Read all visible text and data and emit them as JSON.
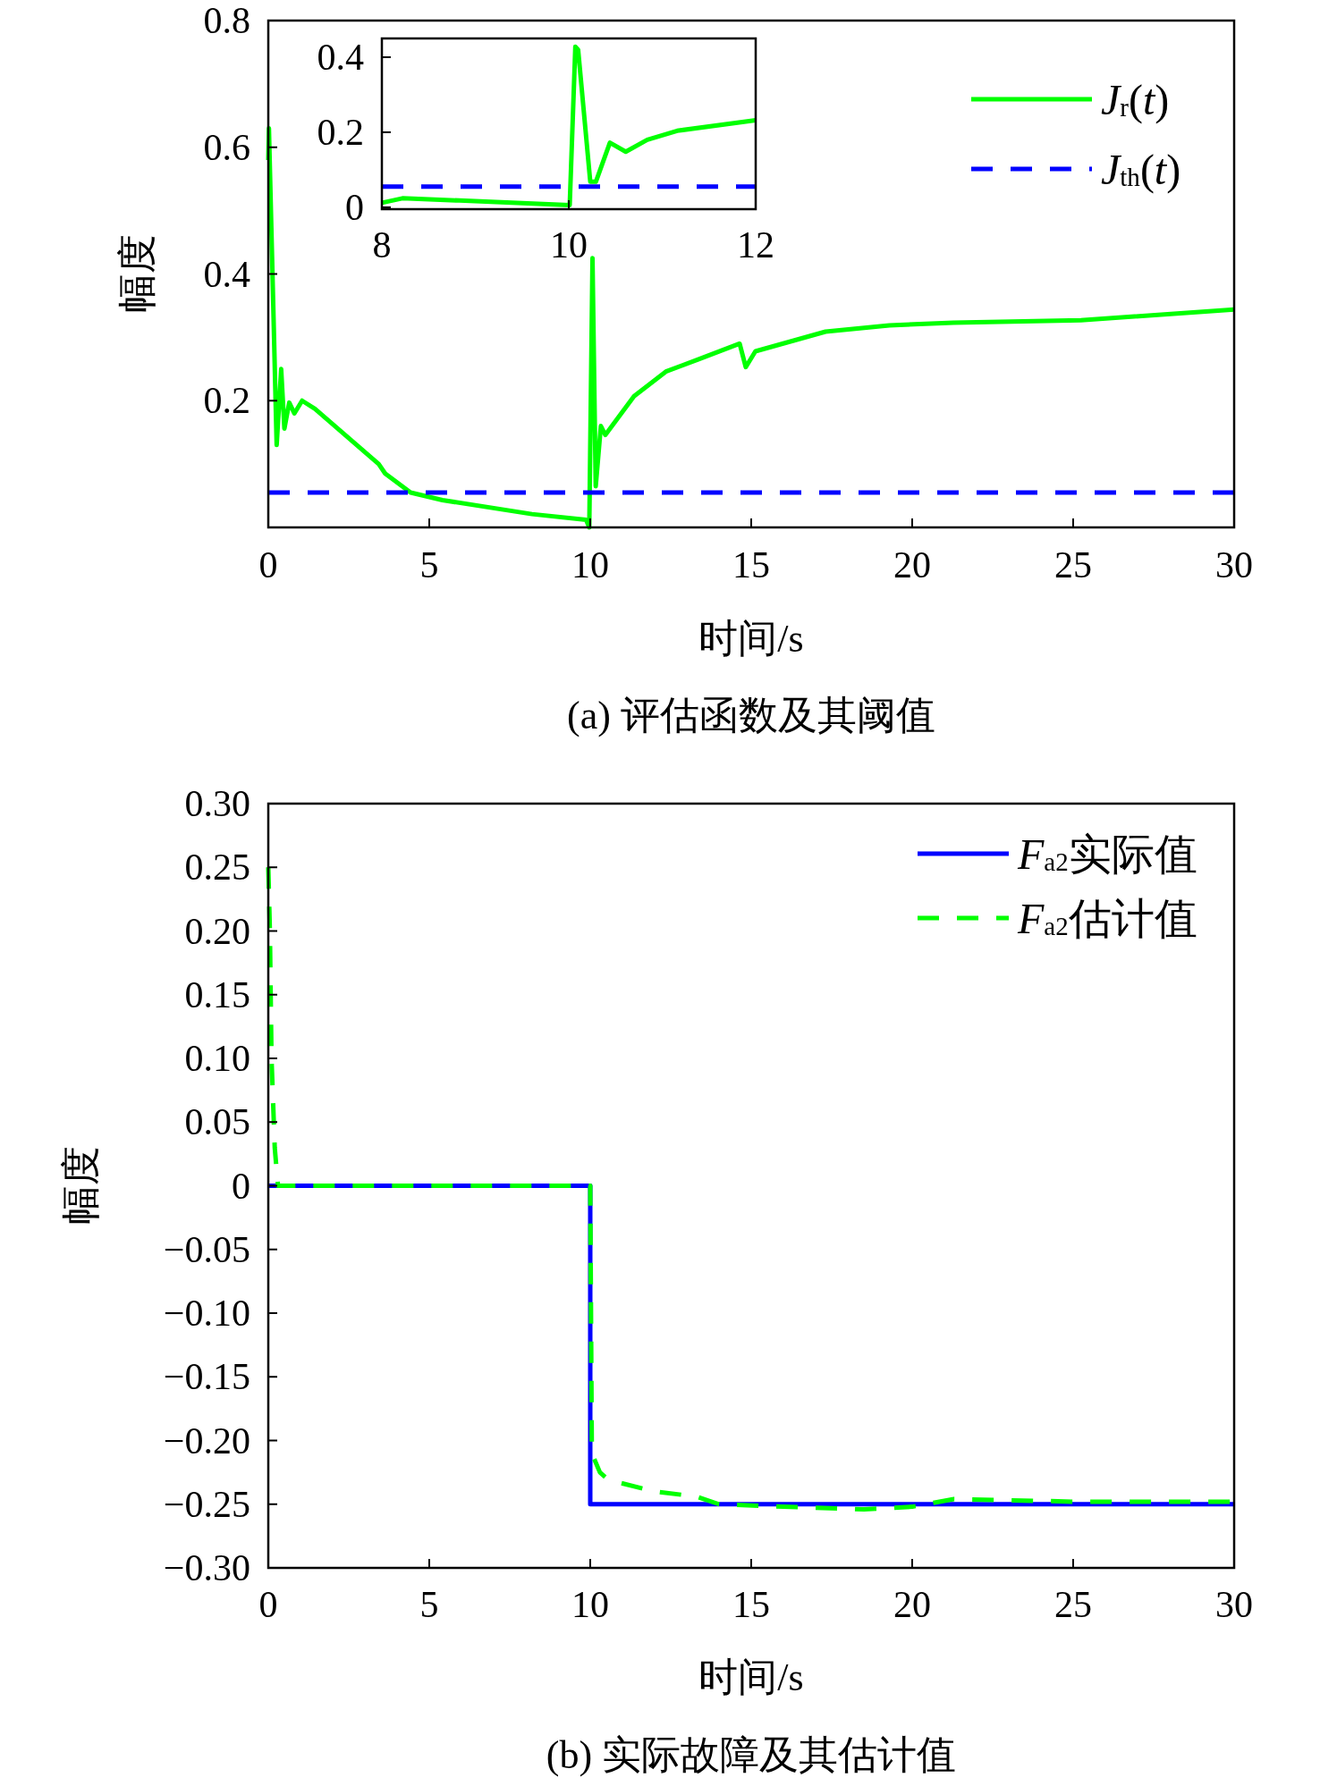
{
  "chart_data": [
    {
      "type": "line",
      "title": "(a) 评估函数及其阈值",
      "xlabel": "时间/s",
      "ylabel": "幅度",
      "xlim": [
        0,
        30
      ],
      "ylim": [
        0,
        0.8
      ],
      "xticks": [
        0,
        5,
        10,
        15,
        20,
        25,
        30
      ],
      "yticks": [
        0.2,
        0.4,
        0.6,
        0.8
      ],
      "legend": "top right",
      "series": [
        {
          "name": "*J*$_{r}$(*t*)",
          "color": "#00ff00",
          "line_style": "solid",
          "x": [
            0,
            0.02,
            0.26,
            0.4,
            0.5,
            0.65,
            0.81,
            1.05,
            1.45,
            3.43,
            3.63,
            4.42,
            5.41,
            8.19,
            9.87,
            9.97,
            10.07,
            10.17,
            10.33,
            10.47,
            11.36,
            12.35,
            13.35,
            14.64,
            14.83,
            15.13,
            17.31,
            19.29,
            21.28,
            25.24,
            30
          ],
          "values": [
            0.58,
            0.63,
            0.13,
            0.25,
            0.156,
            0.197,
            0.18,
            0.2,
            0.187,
            0.1,
            0.085,
            0.055,
            0.043,
            0.021,
            0.012,
            0.0,
            0.425,
            0.065,
            0.16,
            0.146,
            0.207,
            0.246,
            0.265,
            0.29,
            0.253,
            0.278,
            0.309,
            0.319,
            0.323,
            0.327,
            0.344
          ]
        },
        {
          "name": "*J*$_{th}$(*t*)",
          "color": "#0000ff",
          "line_style": "dashed",
          "x": [
            0,
            30
          ],
          "values": [
            0.055,
            0.055
          ]
        }
      ]
    },
    {
      "type": "line",
      "xlim": [
        8,
        12
      ],
      "ylim": [
        -0.005,
        0.45
      ],
      "xticks": [
        8,
        10,
        12
      ],
      "yticks": [
        0,
        0.2,
        0.4
      ],
      "series": [
        {
          "color": "#00ff00",
          "line_style": "solid",
          "x": [
            8,
            8.22,
            8.83,
            10.01,
            10.07,
            10.1,
            10.23,
            10.29,
            10.44,
            10.61,
            10.84,
            11.16,
            12
          ],
          "values": [
            0.012,
            0.024,
            0.018,
            0.006,
            0.428,
            0.42,
            0.068,
            0.068,
            0.172,
            0.148,
            0.18,
            0.204,
            0.232
          ]
        },
        {
          "color": "#0000ff",
          "line_style": "dashed",
          "x": [
            8,
            12
          ],
          "values": [
            0.055,
            0.055
          ]
        }
      ]
    },
    {
      "type": "line",
      "title": "(b) 实际故障及其估计值",
      "xlabel": "时间/s",
      "ylabel": "幅度",
      "xlim": [
        0,
        30
      ],
      "ylim": [
        -0.3,
        0.3
      ],
      "xticks": [
        0,
        5,
        10,
        15,
        20,
        25,
        30
      ],
      "yticks": [
        {
          "value": 0.3,
          "label": "0.30"
        },
        {
          "value": 0.25,
          "label": "0.25"
        },
        {
          "value": 0.2,
          "label": "0.20"
        },
        {
          "value": 0.15,
          "label": "0.15"
        },
        {
          "value": 0.1,
          "label": "0.10"
        },
        {
          "value": 0.05,
          "label": "0.05"
        },
        {
          "value": 0,
          "label": "0"
        },
        {
          "value": -0.05,
          "label": "−0.05"
        },
        {
          "value": -0.1,
          "label": "−0.10"
        },
        {
          "value": -0.15,
          "label": "−0.15"
        },
        {
          "value": -0.2,
          "label": "−0.20"
        },
        {
          "value": -0.25,
          "label": "−0.25"
        },
        {
          "value": -0.3,
          "label": "−0.30"
        }
      ],
      "legend": "top right",
      "series": [
        {
          "name": "*F*$_{a2}$实际值",
          "color": "#0000ff",
          "line_style": "solid",
          "x": [
            0,
            10,
            10,
            30
          ],
          "values": [
            0,
            0,
            -0.25,
            -0.25
          ]
        },
        {
          "name": "*F*$_{a2}$估计值",
          "color": "#00ff00",
          "line_style": "dashed",
          "x": [
            0,
            0.05,
            0.1,
            0.2,
            0.3,
            10,
            10.05,
            10.3,
            10.57,
            12,
            13.3,
            14,
            16,
            18.5,
            20,
            21.3,
            25,
            30
          ],
          "values": [
            0.25,
            0.2,
            0.1,
            0.03,
            0,
            0,
            -0.21,
            -0.225,
            -0.231,
            -0.24,
            -0.244,
            -0.25,
            -0.252,
            -0.254,
            -0.252,
            -0.246,
            -0.248,
            -0.248
          ]
        }
      ]
    }
  ]
}
